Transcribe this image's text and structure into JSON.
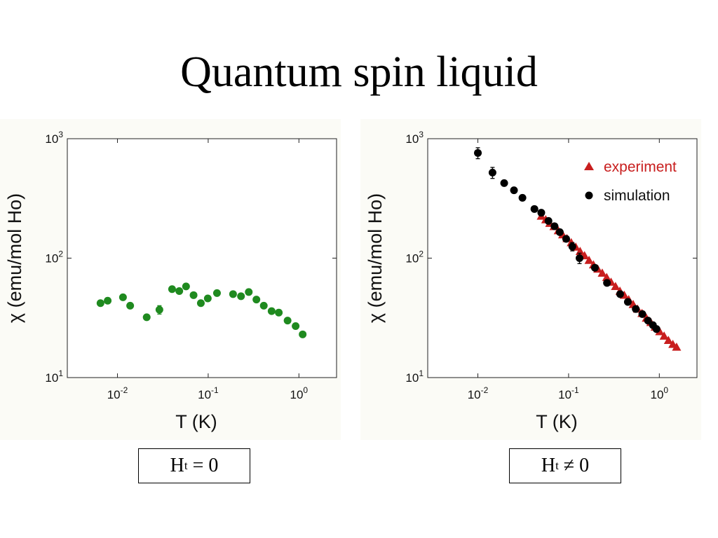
{
  "title": "Quantum spin liquid",
  "chart_data": [
    {
      "type": "scatter",
      "x_scale": "log",
      "y_scale": "log",
      "xlabel": "T (K)",
      "ylabel": "χ (emu/mol Ho)",
      "xlim": [
        0.0028,
        2.6
      ],
      "ylim": [
        10,
        1000
      ],
      "xticks": [
        {
          "base": "10",
          "exp": "-2",
          "value": 0.01
        },
        {
          "base": "10",
          "exp": "-1",
          "value": 0.1
        },
        {
          "base": "10",
          "exp": "0",
          "value": 1
        }
      ],
      "yticks": [
        {
          "base": "10",
          "exp": "1",
          "value": 10
        },
        {
          "base": "10",
          "exp": "2",
          "value": 100
        },
        {
          "base": "10",
          "exp": "3",
          "value": 1000
        }
      ],
      "grid": false,
      "series": [
        {
          "color": "#1f8a1f",
          "marker": "circle",
          "points": [
            {
              "x": 0.0065,
              "y": 42
            },
            {
              "x": 0.0078,
              "y": 44
            },
            {
              "x": 0.0115,
              "y": 47
            },
            {
              "x": 0.0138,
              "y": 40
            },
            {
              "x": 0.021,
              "y": 32
            },
            {
              "x": 0.029,
              "y": 37,
              "err": 3
            },
            {
              "x": 0.04,
              "y": 55
            },
            {
              "x": 0.048,
              "y": 53
            },
            {
              "x": 0.057,
              "y": 58
            },
            {
              "x": 0.069,
              "y": 49
            },
            {
              "x": 0.083,
              "y": 42
            },
            {
              "x": 0.099,
              "y": 46
            },
            {
              "x": 0.125,
              "y": 51
            },
            {
              "x": 0.188,
              "y": 50
            },
            {
              "x": 0.23,
              "y": 48
            },
            {
              "x": 0.28,
              "y": 52
            },
            {
              "x": 0.34,
              "y": 45
            },
            {
              "x": 0.41,
              "y": 40
            },
            {
              "x": 0.5,
              "y": 36
            },
            {
              "x": 0.6,
              "y": 35
            },
            {
              "x": 0.75,
              "y": 30
            },
            {
              "x": 0.92,
              "y": 27
            },
            {
              "x": 1.1,
              "y": 23
            }
          ]
        }
      ]
    },
    {
      "type": "scatter",
      "x_scale": "log",
      "y_scale": "log",
      "xlabel": "T (K)",
      "ylabel": "χ (emu/mol Ho)",
      "xlim": [
        0.0028,
        2.6
      ],
      "ylim": [
        10,
        1000
      ],
      "xticks": [
        {
          "base": "10",
          "exp": "-2",
          "value": 0.01
        },
        {
          "base": "10",
          "exp": "-1",
          "value": 0.1
        },
        {
          "base": "10",
          "exp": "0",
          "value": 1
        }
      ],
      "yticks": [
        {
          "base": "10",
          "exp": "1",
          "value": 10
        },
        {
          "base": "10",
          "exp": "2",
          "value": 100
        },
        {
          "base": "10",
          "exp": "3",
          "value": 1000
        }
      ],
      "grid": false,
      "legend": "top-right",
      "series": [
        {
          "name": "experiment",
          "color": "#c81e1e",
          "marker": "triangle",
          "points": [
            {
              "x": 0.05,
              "y": 225
            },
            {
              "x": 0.056,
              "y": 210
            },
            {
              "x": 0.062,
              "y": 196
            },
            {
              "x": 0.069,
              "y": 184
            },
            {
              "x": 0.077,
              "y": 170
            },
            {
              "x": 0.086,
              "y": 157
            },
            {
              "x": 0.096,
              "y": 146
            },
            {
              "x": 0.107,
              "y": 135
            },
            {
              "x": 0.12,
              "y": 124
            },
            {
              "x": 0.134,
              "y": 114
            },
            {
              "x": 0.15,
              "y": 105
            },
            {
              "x": 0.168,
              "y": 96
            },
            {
              "x": 0.188,
              "y": 88
            },
            {
              "x": 0.21,
              "y": 81
            },
            {
              "x": 0.235,
              "y": 75
            },
            {
              "x": 0.263,
              "y": 69
            },
            {
              "x": 0.294,
              "y": 63
            },
            {
              "x": 0.329,
              "y": 58
            },
            {
              "x": 0.368,
              "y": 53
            },
            {
              "x": 0.411,
              "y": 49
            },
            {
              "x": 0.46,
              "y": 45
            },
            {
              "x": 0.515,
              "y": 41
            },
            {
              "x": 0.576,
              "y": 37.5
            },
            {
              "x": 0.644,
              "y": 34.5
            },
            {
              "x": 0.72,
              "y": 31.5
            },
            {
              "x": 0.806,
              "y": 29
            },
            {
              "x": 0.9,
              "y": 26.5
            },
            {
              "x": 1.01,
              "y": 24.3
            },
            {
              "x": 1.13,
              "y": 22.3
            },
            {
              "x": 1.26,
              "y": 20.5
            },
            {
              "x": 1.41,
              "y": 19
            },
            {
              "x": 1.55,
              "y": 18
            }
          ]
        },
        {
          "name": "simulation",
          "color": "#000000",
          "marker": "circle",
          "points": [
            {
              "x": 0.01,
              "y": 760,
              "err": 80
            },
            {
              "x": 0.0145,
              "y": 520,
              "err": 55
            },
            {
              "x": 0.0195,
              "y": 425
            },
            {
              "x": 0.025,
              "y": 370
            },
            {
              "x": 0.031,
              "y": 320
            },
            {
              "x": 0.042,
              "y": 258
            },
            {
              "x": 0.05,
              "y": 240
            },
            {
              "x": 0.06,
              "y": 205
            },
            {
              "x": 0.07,
              "y": 185
            },
            {
              "x": 0.08,
              "y": 165
            },
            {
              "x": 0.094,
              "y": 145
            },
            {
              "x": 0.11,
              "y": 125,
              "err": 10
            },
            {
              "x": 0.132,
              "y": 100,
              "err": 10
            },
            {
              "x": 0.195,
              "y": 83
            },
            {
              "x": 0.265,
              "y": 62
            },
            {
              "x": 0.37,
              "y": 50
            },
            {
              "x": 0.45,
              "y": 43
            },
            {
              "x": 0.55,
              "y": 37.5
            },
            {
              "x": 0.65,
              "y": 34
            },
            {
              "x": 0.75,
              "y": 30
            },
            {
              "x": 0.85,
              "y": 27.5
            },
            {
              "x": 0.93,
              "y": 25.5
            }
          ]
        }
      ]
    }
  ],
  "captions": {
    "left": {
      "main": "H",
      "sub": "t",
      "rest": " = 0"
    },
    "right": {
      "main": "H",
      "sub": "t",
      "rest": " ≠ 0"
    }
  }
}
